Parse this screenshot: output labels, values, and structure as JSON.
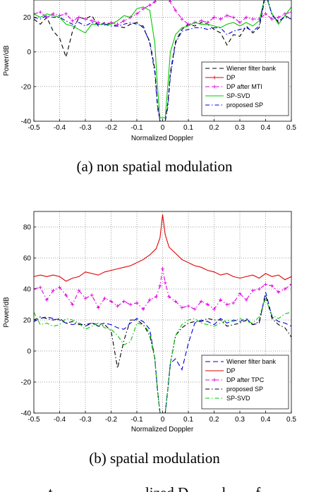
{
  "figure": {
    "captions": [
      "(a)  non spatial modulation",
      "(b)  spatial modulation"
    ],
    "bottom_text": "t                         lized D         l        f"
  },
  "chart_data": [
    {
      "type": "line",
      "title": "",
      "xlabel": "Normalized Doppler",
      "ylabel": "Power/dB",
      "xlim": [
        -0.5,
        0.5
      ],
      "ylim": [
        -40,
        30
      ],
      "xticks": [
        -0.5,
        -0.4,
        -0.3,
        -0.2,
        -0.1,
        0,
        0.1,
        0.2,
        0.3,
        0.4,
        0.5
      ],
      "yticks": [
        -40,
        -20,
        0,
        20
      ],
      "xtick_labels": [
        "-0.5",
        "-0.4",
        "-0.3",
        "-0.2",
        "-0.1",
        "0",
        "0.1",
        "0.2",
        "0.3",
        "0.4",
        "0.5"
      ],
      "ytick_labels": [
        "-40",
        "-20",
        "0",
        "20"
      ],
      "grid": true,
      "legend_position": "lower-right",
      "series": [
        {
          "name": "Wiener filter bank",
          "color": "#000000",
          "dash": "6,4",
          "marker": "none",
          "x": [
            -0.5,
            -0.475,
            -0.45,
            -0.425,
            -0.4,
            -0.375,
            -0.35,
            -0.325,
            -0.3,
            -0.275,
            -0.25,
            -0.225,
            -0.2,
            -0.175,
            -0.15,
            -0.125,
            -0.1,
            -0.075,
            -0.05,
            -0.03,
            -0.02,
            -0.01,
            0.01,
            0.02,
            0.03,
            0.05,
            0.075,
            0.1,
            0.125,
            0.15,
            0.175,
            0.2,
            0.225,
            0.25,
            0.275,
            0.3,
            0.325,
            0.35,
            0.375,
            0.4,
            0.425,
            0.45,
            0.475,
            0.5
          ],
          "y": [
            19,
            16,
            20,
            12,
            8,
            -3,
            12,
            20,
            19,
            21,
            15,
            17,
            16,
            15,
            14,
            16,
            17,
            14,
            6,
            -10,
            -30,
            -40,
            -40,
            -30,
            -12,
            6,
            13,
            16,
            15,
            17,
            16,
            13,
            11,
            4,
            10,
            9,
            15,
            11,
            14,
            33,
            22,
            17,
            21,
            19
          ]
        },
        {
          "name": "DP",
          "color": "#e00000",
          "dash": "",
          "marker": "plus",
          "x": [
            -0.04,
            -0.02,
            0,
            0.02,
            0.04
          ],
          "y": [
            33,
            36,
            38,
            36,
            33
          ]
        },
        {
          "name": "DP after MTI",
          "color": "#e000e0",
          "dash": "6,3,1.5,3",
          "marker": "plus",
          "x": [
            -0.5,
            -0.475,
            -0.45,
            -0.425,
            -0.4,
            -0.375,
            -0.35,
            -0.325,
            -0.3,
            -0.275,
            -0.25,
            -0.225,
            -0.2,
            -0.175,
            -0.15,
            -0.125,
            -0.1,
            -0.075,
            -0.05,
            -0.03,
            -0.015,
            0.015,
            0.03,
            0.05,
            0.075,
            0.1,
            0.125,
            0.15,
            0.175,
            0.2,
            0.225,
            0.25,
            0.275,
            0.3,
            0.325,
            0.35,
            0.375,
            0.4,
            0.425,
            0.45,
            0.475,
            0.5
          ],
          "y": [
            22,
            23,
            20,
            22,
            21,
            22,
            18,
            20,
            19,
            18,
            17,
            16,
            17,
            16,
            18,
            20,
            22,
            25,
            27,
            29,
            32,
            32,
            29,
            24,
            19,
            16,
            17,
            18,
            17,
            20,
            19,
            21,
            20,
            17,
            20,
            19,
            19,
            22,
            19,
            20,
            22,
            23
          ]
        },
        {
          "name": "SP-SVD",
          "color": "#00c800",
          "dash": "",
          "marker": "none",
          "x": [
            -0.5,
            -0.475,
            -0.45,
            -0.425,
            -0.4,
            -0.375,
            -0.35,
            -0.325,
            -0.3,
            -0.275,
            -0.25,
            -0.225,
            -0.2,
            -0.175,
            -0.15,
            -0.125,
            -0.1,
            -0.075,
            -0.05,
            -0.03,
            -0.02,
            -0.01,
            0.01,
            0.02,
            0.03,
            0.05,
            0.075,
            0.1,
            0.125,
            0.15,
            0.175,
            0.2,
            0.225,
            0.25,
            0.275,
            0.3,
            0.325,
            0.35,
            0.375,
            0.4,
            0.425,
            0.45,
            0.475,
            0.5
          ],
          "y": [
            22,
            20,
            22,
            21,
            20,
            16,
            15,
            13,
            11,
            16,
            16,
            16,
            16,
            18,
            21,
            20,
            25,
            26,
            24,
            5,
            -20,
            -38,
            -38,
            -20,
            0,
            10,
            14,
            15,
            17,
            16,
            16,
            15,
            14,
            16,
            17,
            15,
            17,
            15,
            18,
            33,
            22,
            16,
            21,
            26
          ]
        },
        {
          "name": "proposed SP",
          "color": "#0000e0",
          "dash": "6,3,1.5,3",
          "marker": "none",
          "x": [
            -0.5,
            -0.475,
            -0.45,
            -0.425,
            -0.4,
            -0.375,
            -0.35,
            -0.325,
            -0.3,
            -0.275,
            -0.25,
            -0.225,
            -0.2,
            -0.175,
            -0.15,
            -0.125,
            -0.1,
            -0.075,
            -0.05,
            -0.03,
            -0.02,
            -0.01,
            0.01,
            0.02,
            0.03,
            0.05,
            0.075,
            0.1,
            0.125,
            0.15,
            0.175,
            0.2,
            0.225,
            0.25,
            0.275,
            0.3,
            0.325,
            0.35,
            0.375,
            0.4,
            0.425,
            0.45,
            0.475,
            0.5
          ],
          "y": [
            20,
            19,
            21,
            20,
            20,
            18,
            16,
            17,
            15,
            17,
            16,
            16,
            15,
            15,
            16,
            17,
            16,
            15,
            5,
            -12,
            -32,
            -40,
            -40,
            -32,
            -14,
            5,
            12,
            13,
            14,
            14,
            13,
            14,
            14,
            10,
            12,
            13,
            14,
            12,
            15,
            35,
            21,
            18,
            20,
            19
          ]
        }
      ]
    },
    {
      "type": "line",
      "title": "",
      "xlabel": "Normalized Doppler",
      "ylabel": "Power/dB",
      "xlim": [
        -0.5,
        0.5
      ],
      "ylim": [
        -40,
        90
      ],
      "xticks": [
        -0.5,
        -0.4,
        -0.3,
        -0.2,
        -0.1,
        0,
        0.1,
        0.2,
        0.3,
        0.4,
        0.5
      ],
      "yticks": [
        -40,
        -20,
        0,
        20,
        40,
        60,
        80
      ],
      "xtick_labels": [
        "-0.5",
        "-0.4",
        "-0.3",
        "-0.2",
        "-0.1",
        "0",
        "0.1",
        "0.2",
        "0.3",
        "0.4",
        "0.5"
      ],
      "ytick_labels": [
        "-40",
        "-20",
        "0",
        "20",
        "40",
        "60",
        "80"
      ],
      "grid": true,
      "legend_position": "lower-right",
      "series": [
        {
          "name": "Wiener filter bank",
          "color": "#0000e0",
          "dash": "7,4",
          "marker": "none",
          "x": [
            -0.5,
            -0.475,
            -0.45,
            -0.425,
            -0.4,
            -0.375,
            -0.35,
            -0.325,
            -0.3,
            -0.275,
            -0.25,
            -0.225,
            -0.2,
            -0.175,
            -0.15,
            -0.125,
            -0.1,
            -0.075,
            -0.05,
            -0.03,
            -0.02,
            -0.01,
            0.01,
            0.02,
            0.03,
            0.05,
            0.075,
            0.1,
            0.125,
            0.15,
            0.175,
            0.2,
            0.225,
            0.25,
            0.275,
            0.3,
            0.325,
            0.35,
            0.375,
            0.4,
            0.425,
            0.45,
            0.475,
            0.5
          ],
          "y": [
            19,
            21,
            22,
            21,
            20,
            18,
            17,
            18,
            16,
            18,
            17,
            18,
            17,
            15,
            14,
            18,
            21,
            19,
            14,
            -5,
            -25,
            -40,
            -40,
            -25,
            -8,
            -5,
            -12,
            5,
            18,
            20,
            19,
            17,
            21,
            18,
            20,
            19,
            21,
            17,
            18,
            38,
            22,
            19,
            18,
            16
          ]
        },
        {
          "name": "DP",
          "color": "#e00000",
          "dash": "",
          "marker": "none",
          "x": [
            -0.5,
            -0.475,
            -0.45,
            -0.425,
            -0.4,
            -0.375,
            -0.35,
            -0.325,
            -0.3,
            -0.275,
            -0.25,
            -0.225,
            -0.2,
            -0.175,
            -0.15,
            -0.125,
            -0.1,
            -0.075,
            -0.05,
            -0.025,
            -0.01,
            0,
            0.01,
            0.025,
            0.05,
            0.075,
            0.1,
            0.125,
            0.15,
            0.175,
            0.2,
            0.225,
            0.25,
            0.275,
            0.3,
            0.325,
            0.35,
            0.375,
            0.4,
            0.425,
            0.45,
            0.475,
            0.5
          ],
          "y": [
            48,
            49,
            48,
            49,
            48,
            45,
            47,
            48,
            51,
            50,
            49,
            51,
            52,
            53,
            54,
            55,
            57,
            59,
            62,
            66,
            73,
            88,
            75,
            67,
            63,
            59,
            57,
            55,
            54,
            52,
            51,
            49,
            50,
            48,
            47,
            48,
            49,
            47,
            50,
            48,
            49,
            46,
            48
          ]
        },
        {
          "name": "DP after TPC",
          "color": "#e000e0",
          "dash": "6,3,1.5,3",
          "marker": "plus",
          "x": [
            -0.5,
            -0.475,
            -0.45,
            -0.425,
            -0.4,
            -0.375,
            -0.35,
            -0.325,
            -0.3,
            -0.275,
            -0.25,
            -0.225,
            -0.2,
            -0.175,
            -0.15,
            -0.125,
            -0.1,
            -0.075,
            -0.05,
            -0.025,
            -0.01,
            0,
            0.01,
            0.025,
            0.05,
            0.075,
            0.1,
            0.125,
            0.15,
            0.175,
            0.2,
            0.225,
            0.25,
            0.275,
            0.3,
            0.325,
            0.35,
            0.375,
            0.4,
            0.425,
            0.45,
            0.475,
            0.5
          ],
          "y": [
            40,
            41,
            33,
            39,
            41,
            36,
            30,
            39,
            34,
            36,
            28,
            34,
            32,
            29,
            32,
            30,
            31,
            27,
            33,
            35,
            42,
            53,
            44,
            35,
            32,
            28,
            29,
            27,
            32,
            30,
            27,
            33,
            30,
            31,
            37,
            33,
            39,
            40,
            43,
            42,
            38,
            40,
            43
          ]
        },
        {
          "name": "proposed SP",
          "color": "#000000",
          "dash": "6,3,1.5,3",
          "marker": "none",
          "x": [
            -0.5,
            -0.475,
            -0.45,
            -0.425,
            -0.4,
            -0.375,
            -0.35,
            -0.325,
            -0.3,
            -0.275,
            -0.25,
            -0.225,
            -0.2,
            -0.175,
            -0.15,
            -0.125,
            -0.1,
            -0.075,
            -0.05,
            -0.03,
            -0.02,
            -0.01,
            0.01,
            0.02,
            0.03,
            0.05,
            0.075,
            0.1,
            0.125,
            0.15,
            0.175,
            0.2,
            0.225,
            0.25,
            0.275,
            0.3,
            0.325,
            0.35,
            0.375,
            0.4,
            0.425,
            0.45,
            0.475,
            0.5
          ],
          "y": [
            20,
            22,
            21,
            20,
            21,
            18,
            19,
            17,
            17,
            18,
            16,
            17,
            13,
            -11,
            7,
            20,
            20,
            17,
            10,
            -5,
            -25,
            -40,
            -40,
            -25,
            -8,
            10,
            15,
            18,
            19,
            19,
            21,
            20,
            20,
            16,
            17,
            18,
            20,
            17,
            19,
            36,
            21,
            17,
            15,
            9
          ]
        },
        {
          "name": "SP-SVD",
          "color": "#00c800",
          "dash": "6,3,1.5,3",
          "marker": "none",
          "x": [
            -0.5,
            -0.475,
            -0.45,
            -0.425,
            -0.4,
            -0.375,
            -0.35,
            -0.325,
            -0.3,
            -0.275,
            -0.25,
            -0.225,
            -0.2,
            -0.175,
            -0.15,
            -0.125,
            -0.1,
            -0.075,
            -0.05,
            -0.03,
            -0.02,
            -0.01,
            0.01,
            0.02,
            0.03,
            0.05,
            0.075,
            0.1,
            0.125,
            0.15,
            0.175,
            0.2,
            0.225,
            0.25,
            0.275,
            0.3,
            0.325,
            0.35,
            0.375,
            0.4,
            0.425,
            0.45,
            0.475,
            0.5
          ],
          "y": [
            25,
            17,
            18,
            16,
            17,
            21,
            20,
            18,
            14,
            16,
            18,
            15,
            14,
            10,
            4,
            6,
            18,
            17,
            12,
            -5,
            -25,
            -40,
            -40,
            -25,
            -8,
            10,
            17,
            20,
            21,
            18,
            17,
            16,
            18,
            20,
            19,
            21,
            19,
            18,
            22,
            34,
            23,
            21,
            24,
            25
          ]
        }
      ]
    }
  ]
}
